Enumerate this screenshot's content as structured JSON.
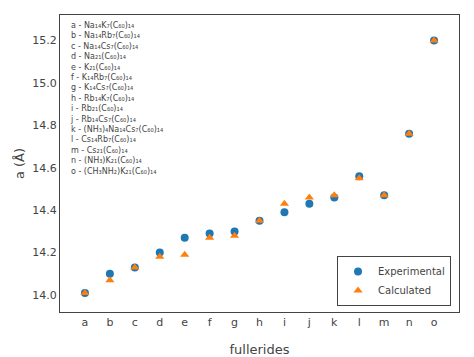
{
  "chart_data": {
    "type": "scatter",
    "categories": [
      "a",
      "b",
      "c",
      "d",
      "e",
      "f",
      "g",
      "h",
      "i",
      "j",
      "k",
      "l",
      "m",
      "n",
      "o"
    ],
    "series": [
      {
        "name": "Experimental",
        "marker": "circle",
        "values": [
          14.01,
          14.1,
          14.13,
          14.2,
          14.27,
          14.29,
          14.3,
          14.35,
          14.39,
          14.43,
          14.46,
          14.56,
          14.47,
          14.76,
          15.2
        ]
      },
      {
        "name": "Calculated",
        "marker": "triangle-up",
        "values": [
          14.01,
          14.07,
          14.13,
          14.18,
          14.19,
          14.27,
          14.28,
          14.35,
          14.43,
          14.46,
          14.47,
          14.55,
          14.47,
          14.76,
          15.2
        ]
      }
    ],
    "xlabel": "fullerides",
    "ylabel": "a (Å)",
    "ylim": [
      13.92,
      15.32
    ],
    "yticks": [
      {
        "value": 14.0,
        "label": "14.0"
      },
      14.2,
      14.4,
      14.6,
      14.8,
      {
        "value": 15.0,
        "label": "15.0"
      },
      15.2
    ],
    "grid": false,
    "legend": "lower right",
    "annotations": [
      "a - Na₁₄K₇(C₆₀)₁₄",
      "b - Na₁₄Rb₇(C₆₀)₁₄",
      "c - Na₁₄Cs₇(C₆₀)₁₄",
      "d - Na₂₁(C₆₀)₁₄",
      "e - K₂₁(C₆₀)₁₄",
      "f - K₁₄Rb₇(C₆₀)₁₄",
      "g - K₁₄Cs₇(C₆₀)₁₄",
      "h - Rb₁₄K₇(C₆₀)₁₄",
      "i - Rb₂₁(C₆₀)₁₄",
      "j - Rb₁₄Cs₇(C₆₀)₁₄",
      "k - (NH₃)₄Na₁₄Cs₇(C₆₀)₁₄",
      "l - Cs₁₄Rb₇(C₆₀)₁₄",
      "m - Cs₂₁(C₆₀)₁₄",
      "n - (NH₃)K₂₁(C₆₀)₁₄",
      "o - (CH₃NH₂)K₂₁(C₆₀)₁₄"
    ]
  }
}
